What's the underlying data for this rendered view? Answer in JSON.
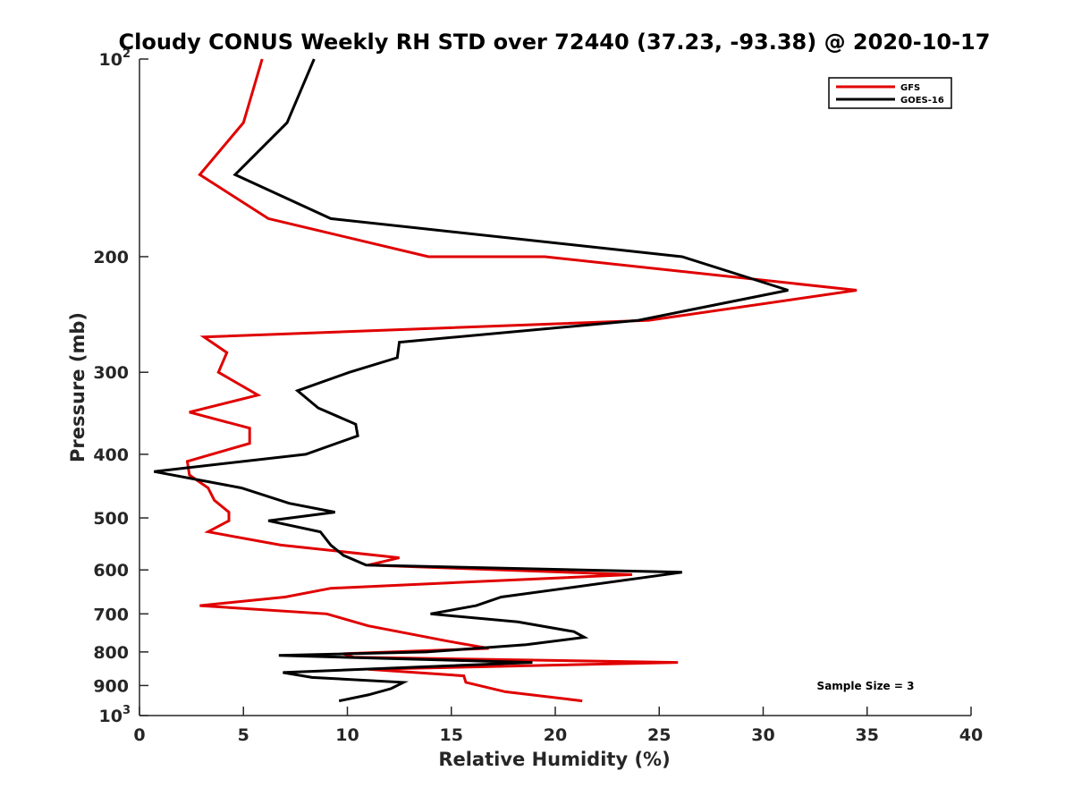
{
  "chart_data": {
    "type": "line",
    "title": "Cloudy CONUS Weekly RH STD over 72440 (37.23, -93.38) @ 2020-10-17",
    "xlabel": "Relative Humidity (%)",
    "ylabel": "Pressure (mb)",
    "xlim": [
      0,
      40
    ],
    "ylim": [
      100,
      1000
    ],
    "y_scale": "log",
    "y_reversed": true,
    "x_ticks": [
      0,
      5,
      10,
      15,
      20,
      25,
      30,
      35,
      40
    ],
    "y_ticks": [
      {
        "value": 100,
        "label": "10",
        "exp": "2"
      },
      {
        "value": 200,
        "label": "200"
      },
      {
        "value": 300,
        "label": "300"
      },
      {
        "value": 400,
        "label": "400"
      },
      {
        "value": 500,
        "label": "500"
      },
      {
        "value": 600,
        "label": "600"
      },
      {
        "value": 700,
        "label": "700"
      },
      {
        "value": 800,
        "label": "800"
      },
      {
        "value": 900,
        "label": "900"
      },
      {
        "value": 1000,
        "label": "10",
        "exp": "3"
      }
    ],
    "grid": false,
    "legend_position": "top-right",
    "annotation": "Sample Size = 3",
    "series": [
      {
        "name": "GFS",
        "color": "#e00000",
        "points": [
          [
            5.9,
            100
          ],
          [
            5.0,
            125
          ],
          [
            2.9,
            150
          ],
          [
            6.2,
            175
          ],
          [
            13.9,
            200
          ],
          [
            19.5,
            200
          ],
          [
            34.5,
            225
          ],
          [
            24.5,
            250
          ],
          [
            3.1,
            265
          ],
          [
            4.2,
            280
          ],
          [
            3.8,
            300
          ],
          [
            5.7,
            325
          ],
          [
            2.4,
            345
          ],
          [
            5.3,
            365
          ],
          [
            5.3,
            385
          ],
          [
            2.3,
            410
          ],
          [
            2.4,
            430
          ],
          [
            3.3,
            450
          ],
          [
            3.6,
            470
          ],
          [
            4.3,
            490
          ],
          [
            4.3,
            505
          ],
          [
            3.3,
            525
          ],
          [
            6.8,
            550
          ],
          [
            12.5,
            575
          ],
          [
            11.0,
            590
          ],
          [
            23.7,
            610
          ],
          [
            9.2,
            640
          ],
          [
            7.0,
            660
          ],
          [
            2.9,
            680
          ],
          [
            9.0,
            700
          ],
          [
            11.0,
            730
          ],
          [
            14.8,
            770
          ],
          [
            16.8,
            790
          ],
          [
            9.8,
            805
          ],
          [
            10.3,
            815
          ],
          [
            25.9,
            830
          ],
          [
            11.0,
            850
          ],
          [
            15.6,
            870
          ],
          [
            15.7,
            890
          ],
          [
            17.6,
            920
          ],
          [
            21.3,
            950
          ]
        ]
      },
      {
        "name": "GOES-16",
        "color": "#000000",
        "points": [
          [
            8.4,
            100
          ],
          [
            7.1,
            125
          ],
          [
            4.6,
            150
          ],
          [
            9.2,
            175
          ],
          [
            26.1,
            200
          ],
          [
            31.2,
            225
          ],
          [
            24.0,
            250
          ],
          [
            12.5,
            270
          ],
          [
            12.4,
            285
          ],
          [
            10.1,
            300
          ],
          [
            7.6,
            320
          ],
          [
            8.6,
            340
          ],
          [
            10.4,
            360
          ],
          [
            10.5,
            375
          ],
          [
            8.0,
            400
          ],
          [
            0.7,
            425
          ],
          [
            4.9,
            450
          ],
          [
            7.2,
            475
          ],
          [
            9.4,
            490
          ],
          [
            6.2,
            505
          ],
          [
            8.7,
            525
          ],
          [
            9.2,
            550
          ],
          [
            9.8,
            570
          ],
          [
            10.9,
            590
          ],
          [
            26.1,
            605
          ],
          [
            20.5,
            640
          ],
          [
            17.4,
            660
          ],
          [
            16.2,
            680
          ],
          [
            14.0,
            700
          ],
          [
            18.2,
            720
          ],
          [
            20.9,
            745
          ],
          [
            21.4,
            760
          ],
          [
            18.6,
            780
          ],
          [
            13.8,
            800
          ],
          [
            6.7,
            810
          ],
          [
            18.9,
            830
          ],
          [
            6.9,
            860
          ],
          [
            8.3,
            875
          ],
          [
            12.7,
            890
          ],
          [
            12.1,
            910
          ],
          [
            11.0,
            930
          ],
          [
            9.6,
            950
          ]
        ]
      }
    ]
  }
}
